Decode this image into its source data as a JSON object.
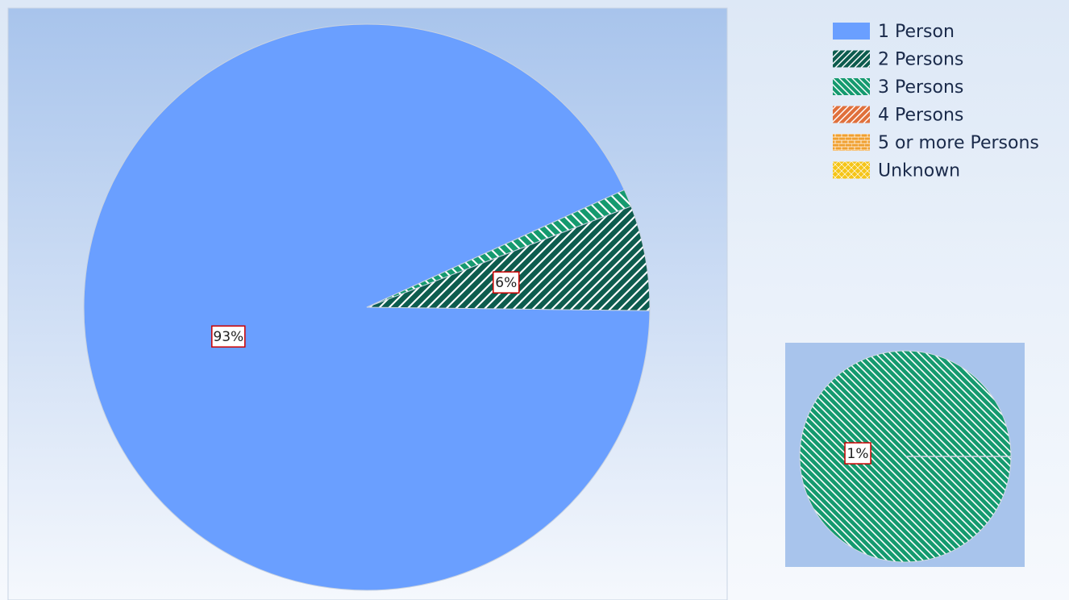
{
  "chart_data": [
    {
      "type": "pie",
      "title": "",
      "slices": [
        {
          "name": "1 Person",
          "value": 93,
          "label": "93%",
          "color": "#6a9fff",
          "pattern": "solid"
        },
        {
          "name": "2 Persons",
          "value": 6,
          "label": "6%",
          "color": "#0d5c4e",
          "pattern": "diag-right"
        },
        {
          "name": "3 Persons",
          "value": 1,
          "label": "",
          "color": "#159a6f",
          "pattern": "diag-left"
        },
        {
          "name": "4 Persons",
          "value": 0,
          "label": "",
          "color": "#e0703c",
          "pattern": "diag-right"
        },
        {
          "name": "5 or more Persons",
          "value": 0,
          "label": "",
          "color": "#f0a030",
          "pattern": "brick"
        },
        {
          "name": "Unknown",
          "value": 0,
          "label": "",
          "color": "#f5c518",
          "pattern": "lattice"
        }
      ]
    },
    {
      "type": "pie",
      "title": "",
      "slices": [
        {
          "name": "3 Persons",
          "value": 1,
          "label": "1%",
          "color": "#159a6f",
          "pattern": "diag-left"
        }
      ]
    }
  ],
  "legend": {
    "placement": "top-right",
    "items": [
      {
        "label": "1 Person",
        "color": "#6a9fff",
        "pattern": "solid"
      },
      {
        "label": "2 Persons",
        "color": "#0d5c4e",
        "pattern": "diag-right"
      },
      {
        "label": "3 Persons",
        "color": "#159a6f",
        "pattern": "diag-left"
      },
      {
        "label": "4 Persons",
        "color": "#e0703c",
        "pattern": "diag-right"
      },
      {
        "label": "5 or more Persons",
        "color": "#f0a030",
        "pattern": "brick"
      },
      {
        "label": "Unknown",
        "color": "#f5c518",
        "pattern": "lattice"
      }
    ]
  },
  "colors": {
    "plot_top": "#a8c4ec",
    "plot_bottom": "#f5f8fd",
    "inset_bg": "#a8c4ec",
    "label_border": "#cc0000"
  }
}
